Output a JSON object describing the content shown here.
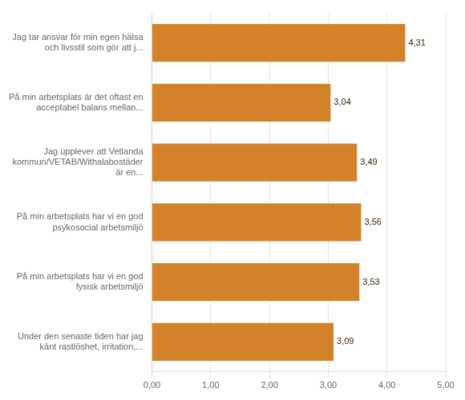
{
  "chart_data": {
    "type": "bar",
    "orientation": "horizontal",
    "categories": [
      "Under den senaste tiden har jag\nkänt rastlöshet, irritation,...",
      "På min arbetsplats har vi en god\nfysisk arbetsmiljö",
      "På min arbetsplats har vi en god\npsykosocial arbetsmiljö",
      "Jag upplever att Vetlanda\nkommun/VETAB/Withalabostäder\när en...",
      "På min arbetsplats är det oftast en\nacceptabel balans mellan...",
      "Jag tar ansvar för min egen hälsa\noch livsstil som gör att j..."
    ],
    "values": [
      3.09,
      3.53,
      3.56,
      3.49,
      3.04,
      4.31
    ],
    "value_labels": [
      "3,09",
      "3,53",
      "3,56",
      "3,49",
      "3,04",
      "4,31"
    ],
    "data_labels": true,
    "color": "#D4822A",
    "xlim": [
      0,
      5.0
    ],
    "xticks": [
      {
        "value": 0.0,
        "label": "0,00"
      },
      {
        "value": 1.0,
        "label": "1,00"
      },
      {
        "value": 2.0,
        "label": "2,00"
      },
      {
        "value": 3.0,
        "label": "3,00"
      },
      {
        "value": 4.0,
        "label": "4,00"
      },
      {
        "value": 5.0,
        "label": "5,00"
      }
    ],
    "grid": true
  }
}
